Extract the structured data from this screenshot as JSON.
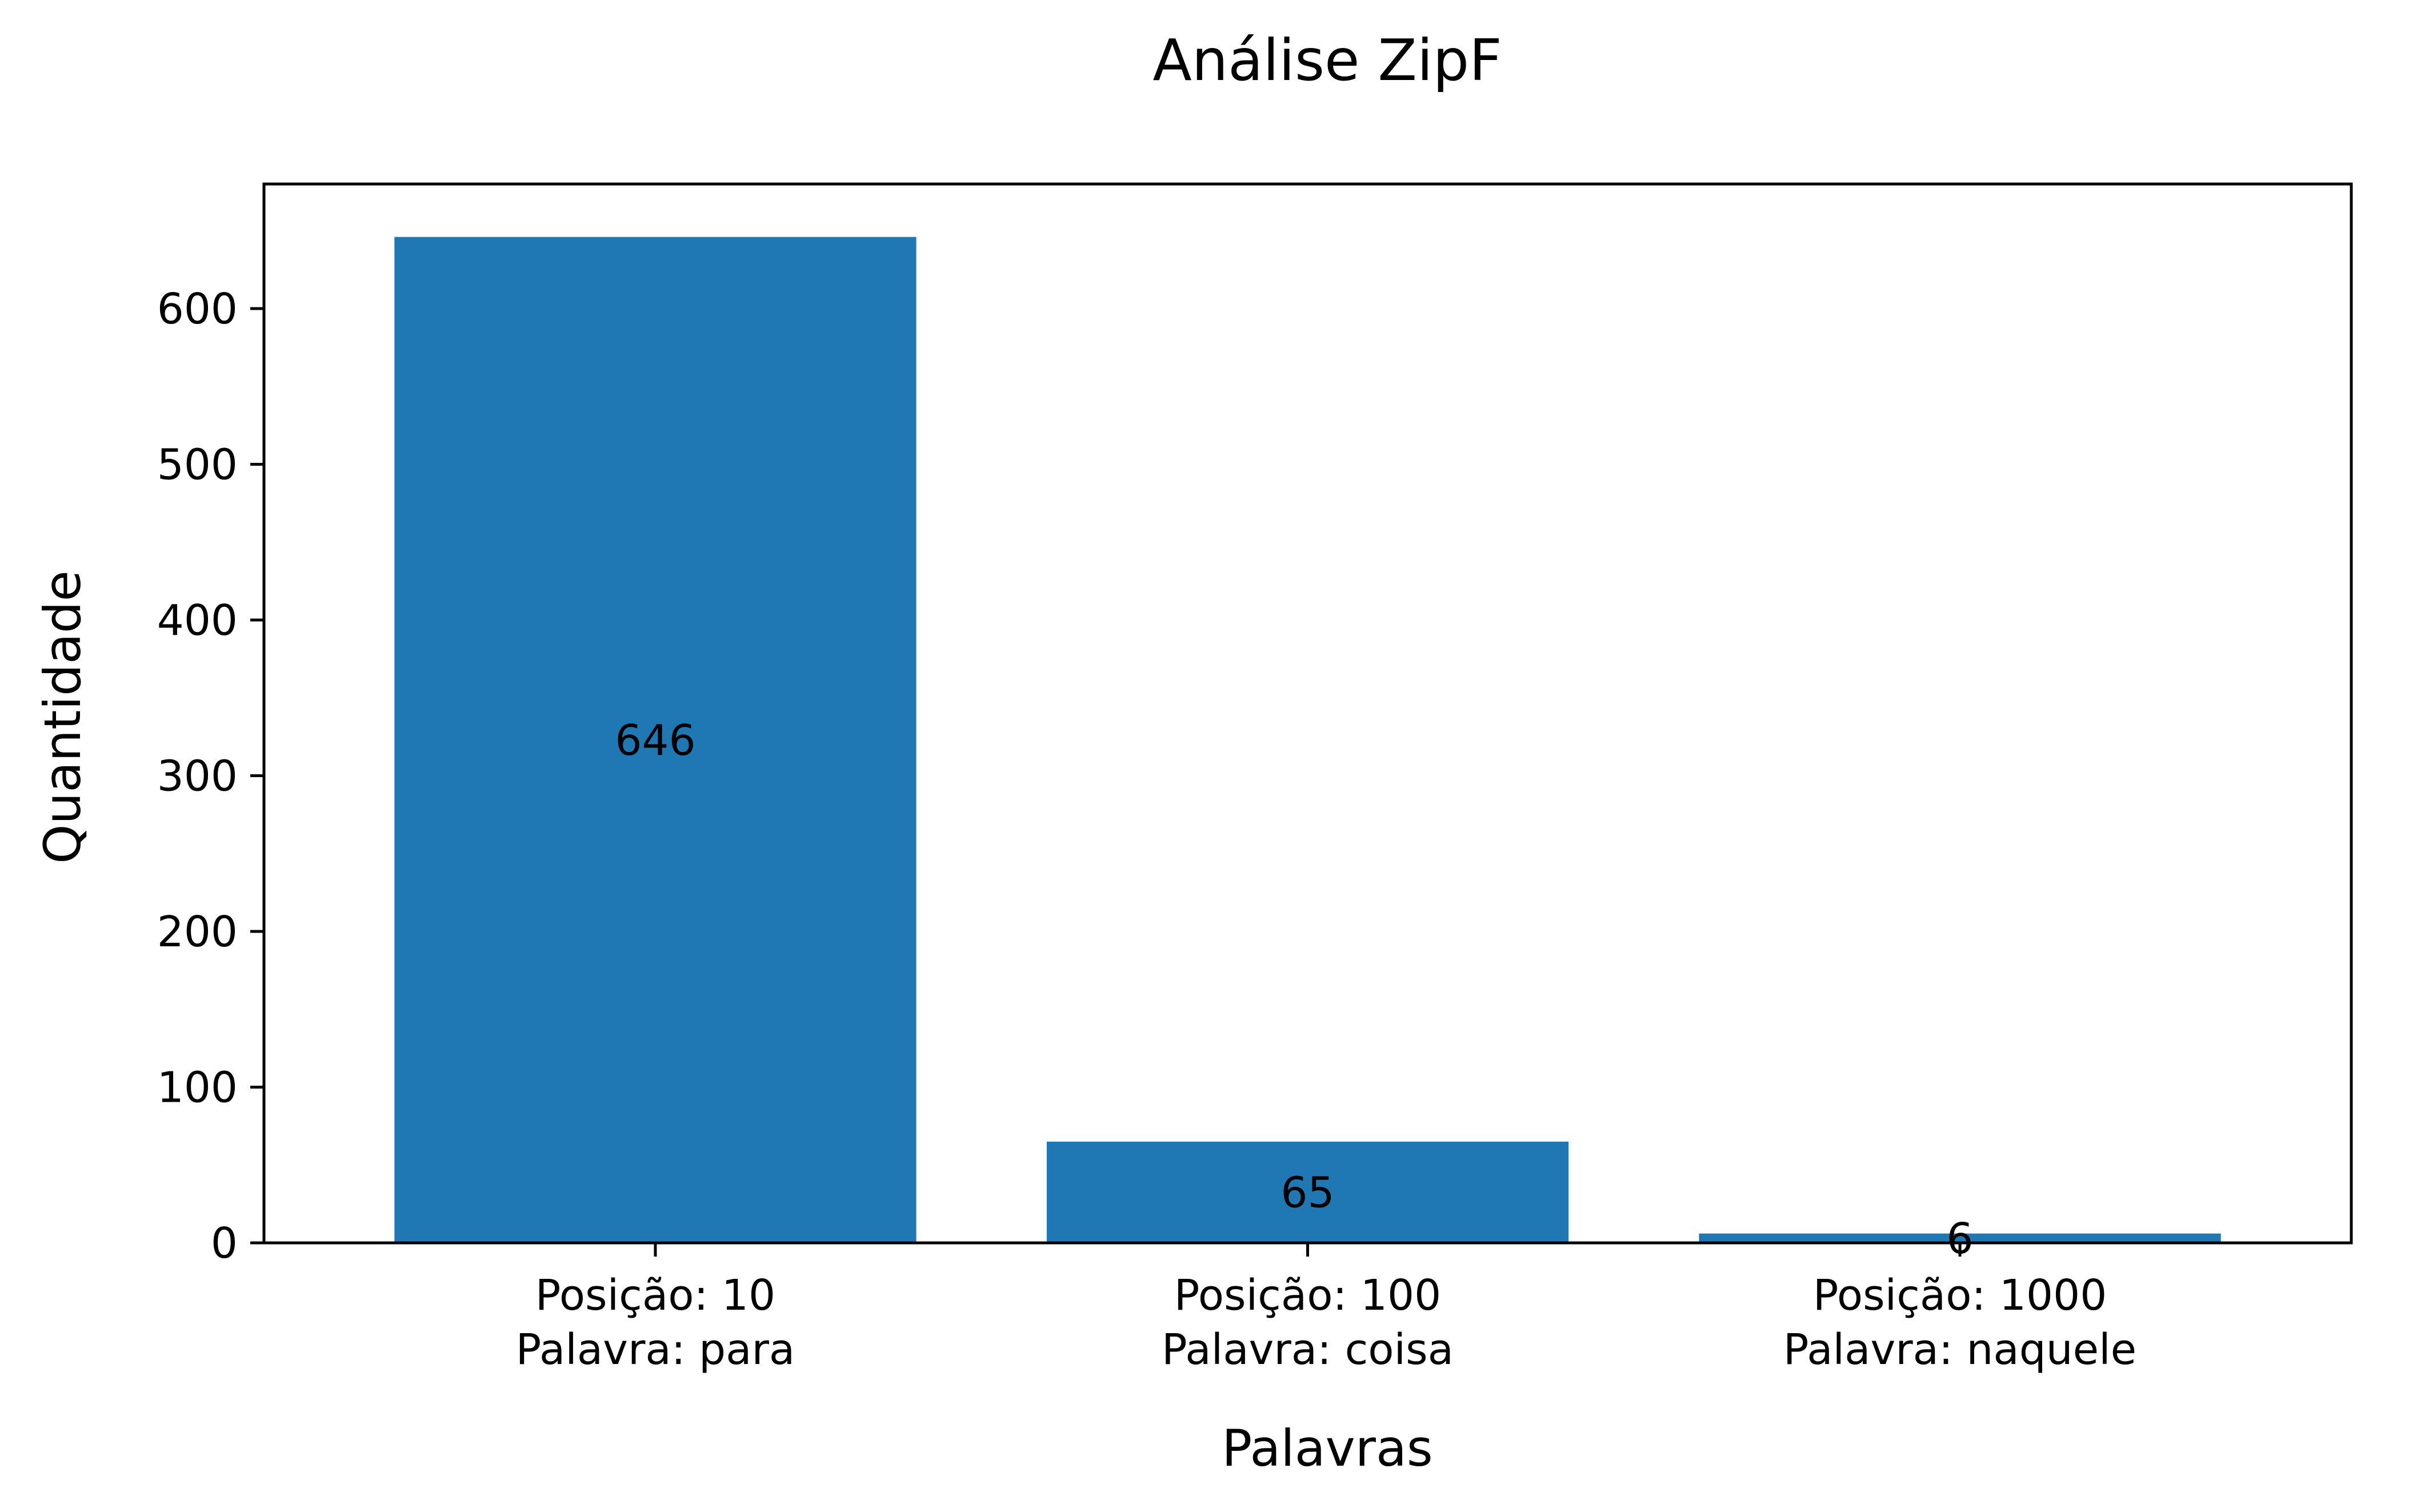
{
  "chart_data": {
    "type": "bar",
    "title": "Análise ZipF",
    "xlabel": "Palavras",
    "ylabel": "Quantidade",
    "categories": [
      [
        "Posição: 10",
        "Palavra: para"
      ],
      [
        "Posição: 100",
        "Palavra: coisa"
      ],
      [
        "Posição: 1000",
        "Palavra: naquele"
      ]
    ],
    "values": [
      646,
      65,
      6
    ],
    "data_labels": [
      "646",
      "65",
      "6"
    ],
    "ylim": [
      0,
      680
    ],
    "yticks": [
      0,
      100,
      200,
      300,
      400,
      500,
      600
    ],
    "ytick_labels": [
      "0",
      "100",
      "200",
      "300",
      "400",
      "500",
      "600"
    ],
    "bar_color": "#1f77b4",
    "grid": false,
    "legend": "none"
  }
}
